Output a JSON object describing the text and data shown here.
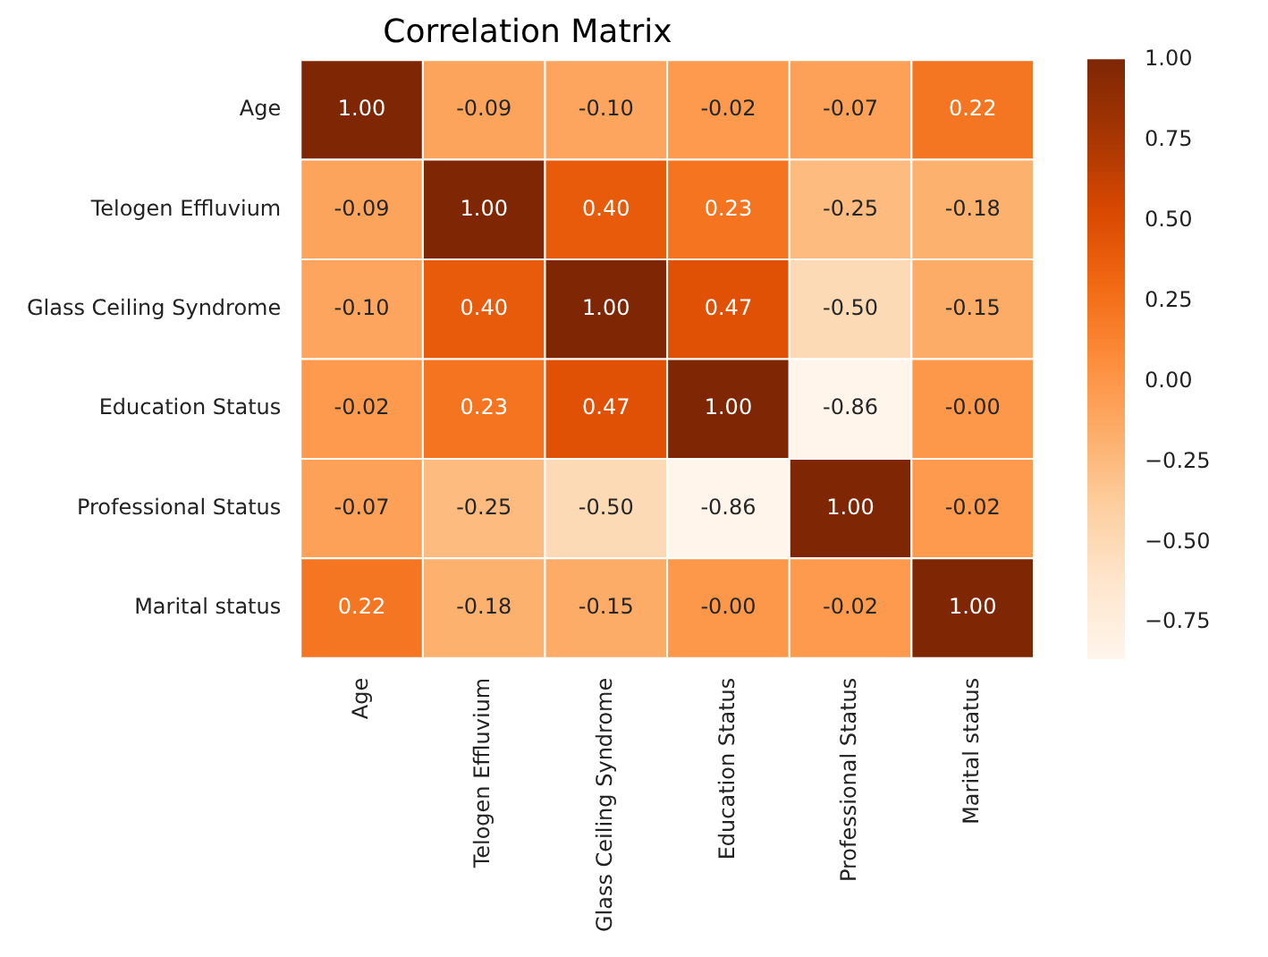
{
  "chart_data": {
    "type": "heatmap",
    "title": "Correlation Matrix",
    "categories": [
      "Age",
      "Telogen Effluvium",
      "Glass Ceiling Syndrome",
      "Education Status",
      "Professional Status",
      "Marital status"
    ],
    "y_categories": [
      "Age",
      "Telogen Effluvium",
      "Glass Ceiling Syndrome",
      "Education Status",
      "Professional Status",
      "Marital status"
    ],
    "cells": [
      [
        1.0,
        -0.09,
        -0.1,
        -0.02,
        -0.07,
        0.22
      ],
      [
        -0.09,
        1.0,
        0.4,
        0.23,
        -0.25,
        -0.18
      ],
      [
        -0.1,
        0.4,
        1.0,
        0.47,
        -0.5,
        -0.15
      ],
      [
        -0.02,
        0.23,
        0.47,
        1.0,
        -0.86,
        0.0
      ],
      [
        -0.07,
        -0.25,
        -0.5,
        -0.86,
        1.0,
        -0.02
      ],
      [
        0.22,
        -0.18,
        -0.15,
        0.0,
        -0.02,
        1.0
      ]
    ],
    "cell_labels": [
      [
        "1.00",
        "-0.09",
        "-0.10",
        "-0.02",
        "-0.07",
        "0.22"
      ],
      [
        "-0.09",
        "1.00",
        "0.40",
        "0.23",
        "-0.25",
        "-0.18"
      ],
      [
        "-0.10",
        "0.40",
        "1.00",
        "0.47",
        "-0.50",
        "-0.15"
      ],
      [
        "-0.02",
        "0.23",
        "0.47",
        "1.00",
        "-0.86",
        "-0.00"
      ],
      [
        "-0.07",
        "-0.25",
        "-0.50",
        "-0.86",
        "1.00",
        "-0.02"
      ],
      [
        "0.22",
        "-0.18",
        "-0.15",
        "-0.00",
        "-0.02",
        "1.00"
      ]
    ],
    "clim": [
      -0.86,
      1.0
    ],
    "cticks": [
      {
        "value": -0.75,
        "label": "−0.75"
      },
      {
        "value": -0.5,
        "label": "−0.50"
      },
      {
        "value": -0.25,
        "label": "−0.25"
      },
      {
        "value": 0,
        "label": "0.00"
      },
      {
        "value": 0.25,
        "label": "0.25"
      },
      {
        "value": 0.5,
        "label": "0.50"
      },
      {
        "value": 0.75,
        "label": "0.75"
      },
      {
        "value": 1,
        "label": "1.00"
      }
    ]
  }
}
